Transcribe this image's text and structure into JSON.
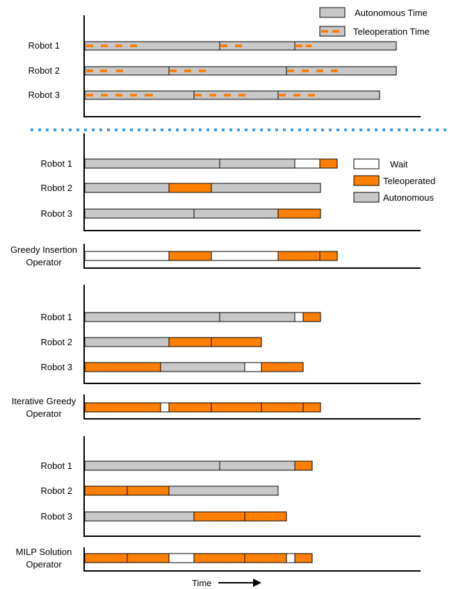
{
  "colors": {
    "autonomous": "#c8c8c8",
    "teleoperated": "#ff7f00",
    "wait": "#ffffff",
    "divider": "#3d9be9",
    "stroke": "#000000"
  },
  "top_section": {
    "legend": {
      "autonomous": "Autonomous Time",
      "teleoperation": "Teleoperation Time"
    },
    "rows": [
      {
        "label": "Robot 1",
        "bar": [
          0,
          448
        ],
        "dividers": [
          194,
          302
        ],
        "dashes": [
          [
            2,
            12
          ],
          [
            23,
            33
          ],
          [
            44,
            54
          ],
          [
            65,
            75
          ],
          [
            195,
            205
          ],
          [
            216,
            226
          ],
          [
            303,
            313
          ],
          [
            318,
            326
          ]
        ]
      },
      {
        "label": "Robot 2",
        "bar": [
          0,
          448
        ],
        "dividers": [
          121,
          290
        ],
        "dashes": [
          [
            2,
            12
          ],
          [
            22,
            32
          ],
          [
            45,
            55
          ],
          [
            122,
            132
          ],
          [
            143,
            153
          ],
          [
            164,
            174
          ],
          [
            291,
            301
          ],
          [
            312,
            322
          ],
          [
            333,
            343
          ],
          [
            354,
            364
          ]
        ]
      },
      {
        "label": "Robot 3",
        "bar": [
          0,
          424
        ],
        "dividers": [
          157,
          278
        ],
        "dashes": [
          [
            2,
            12
          ],
          [
            23,
            33
          ],
          [
            44,
            54
          ],
          [
            65,
            75
          ],
          [
            86,
            98
          ],
          [
            158,
            168
          ],
          [
            179,
            189
          ],
          [
            200,
            210
          ],
          [
            221,
            231
          ],
          [
            279,
            289
          ],
          [
            300,
            310
          ],
          [
            321,
            331
          ]
        ]
      }
    ]
  },
  "legend": {
    "wait": "Wait",
    "teleoperated": "Teleoperated",
    "autonomous": "Autonomous"
  },
  "sections": [
    {
      "operator_label": [
        "Greedy Insertion",
        "Operator"
      ],
      "robots": [
        {
          "label": "Robot 1",
          "segments": [
            {
              "t": "a",
              "s": 0,
              "e": 194
            },
            {
              "t": "a",
              "s": 194,
              "e": 302
            },
            {
              "t": "w",
              "s": 302,
              "e": 338
            },
            {
              "t": "o",
              "s": 338,
              "e": 363
            }
          ]
        },
        {
          "label": "Robot 2",
          "segments": [
            {
              "t": "a",
              "s": 0,
              "e": 121
            },
            {
              "t": "o",
              "s": 121,
              "e": 182
            },
            {
              "t": "a",
              "s": 182,
              "e": 339
            }
          ]
        },
        {
          "label": "Robot 3",
          "segments": [
            {
              "t": "a",
              "s": 0,
              "e": 157
            },
            {
              "t": "a",
              "s": 157,
              "e": 278
            },
            {
              "t": "o",
              "s": 278,
              "e": 339
            }
          ]
        }
      ],
      "operator": [
        {
          "t": "w",
          "s": 0,
          "e": 121
        },
        {
          "t": "o",
          "s": 121,
          "e": 182
        },
        {
          "t": "w",
          "s": 182,
          "e": 278
        },
        {
          "t": "o",
          "s": 278,
          "e": 338
        },
        {
          "t": "o",
          "s": 338,
          "e": 363
        }
      ]
    },
    {
      "operator_label": [
        "Iterative Greedy",
        "Operator"
      ],
      "robots": [
        {
          "label": "Robot 1",
          "segments": [
            {
              "t": "a",
              "s": 0,
              "e": 194
            },
            {
              "t": "a",
              "s": 194,
              "e": 302
            },
            {
              "t": "w",
              "s": 302,
              "e": 314
            },
            {
              "t": "o",
              "s": 314,
              "e": 339
            }
          ]
        },
        {
          "label": "Robot 2",
          "segments": [
            {
              "t": "a",
              "s": 0,
              "e": 121
            },
            {
              "t": "o",
              "s": 121,
              "e": 182
            },
            {
              "t": "o",
              "s": 182,
              "e": 254
            }
          ]
        },
        {
          "label": "Robot 3",
          "segments": [
            {
              "t": "o",
              "s": 0,
              "e": 109
            },
            {
              "t": "a",
              "s": 109,
              "e": 230
            },
            {
              "t": "w",
              "s": 230,
              "e": 254
            },
            {
              "t": "o",
              "s": 254,
              "e": 314
            }
          ]
        }
      ],
      "operator": [
        {
          "t": "o",
          "s": 0,
          "e": 109
        },
        {
          "t": "w",
          "s": 109,
          "e": 121
        },
        {
          "t": "o",
          "s": 121,
          "e": 182
        },
        {
          "t": "o",
          "s": 182,
          "e": 254
        },
        {
          "t": "o",
          "s": 254,
          "e": 314
        },
        {
          "t": "o",
          "s": 314,
          "e": 339
        }
      ]
    },
    {
      "operator_label": [
        "MILP Solution",
        "Operator"
      ],
      "robots": [
        {
          "label": "Robot 1",
          "segments": [
            {
              "t": "a",
              "s": 0,
              "e": 194
            },
            {
              "t": "a",
              "s": 194,
              "e": 302
            },
            {
              "t": "o",
              "s": 302,
              "e": 327
            }
          ]
        },
        {
          "label": "Robot 2",
          "segments": [
            {
              "t": "o",
              "s": 0,
              "e": 61
            },
            {
              "t": "o",
              "s": 61,
              "e": 121
            },
            {
              "t": "a",
              "s": 121,
              "e": 278
            }
          ]
        },
        {
          "label": "Robot 3",
          "segments": [
            {
              "t": "a",
              "s": 0,
              "e": 157
            },
            {
              "t": "o",
              "s": 157,
              "e": 230
            },
            {
              "t": "o",
              "s": 230,
              "e": 290
            }
          ]
        }
      ],
      "operator": [
        {
          "t": "o",
          "s": 0,
          "e": 61
        },
        {
          "t": "o",
          "s": 61,
          "e": 121
        },
        {
          "t": "w",
          "s": 121,
          "e": 157
        },
        {
          "t": "o",
          "s": 157,
          "e": 230
        },
        {
          "t": "o",
          "s": 230,
          "e": 290
        },
        {
          "t": "w",
          "s": 290,
          "e": 302
        },
        {
          "t": "o",
          "s": 302,
          "e": 327
        }
      ]
    }
  ],
  "time_label": "Time"
}
